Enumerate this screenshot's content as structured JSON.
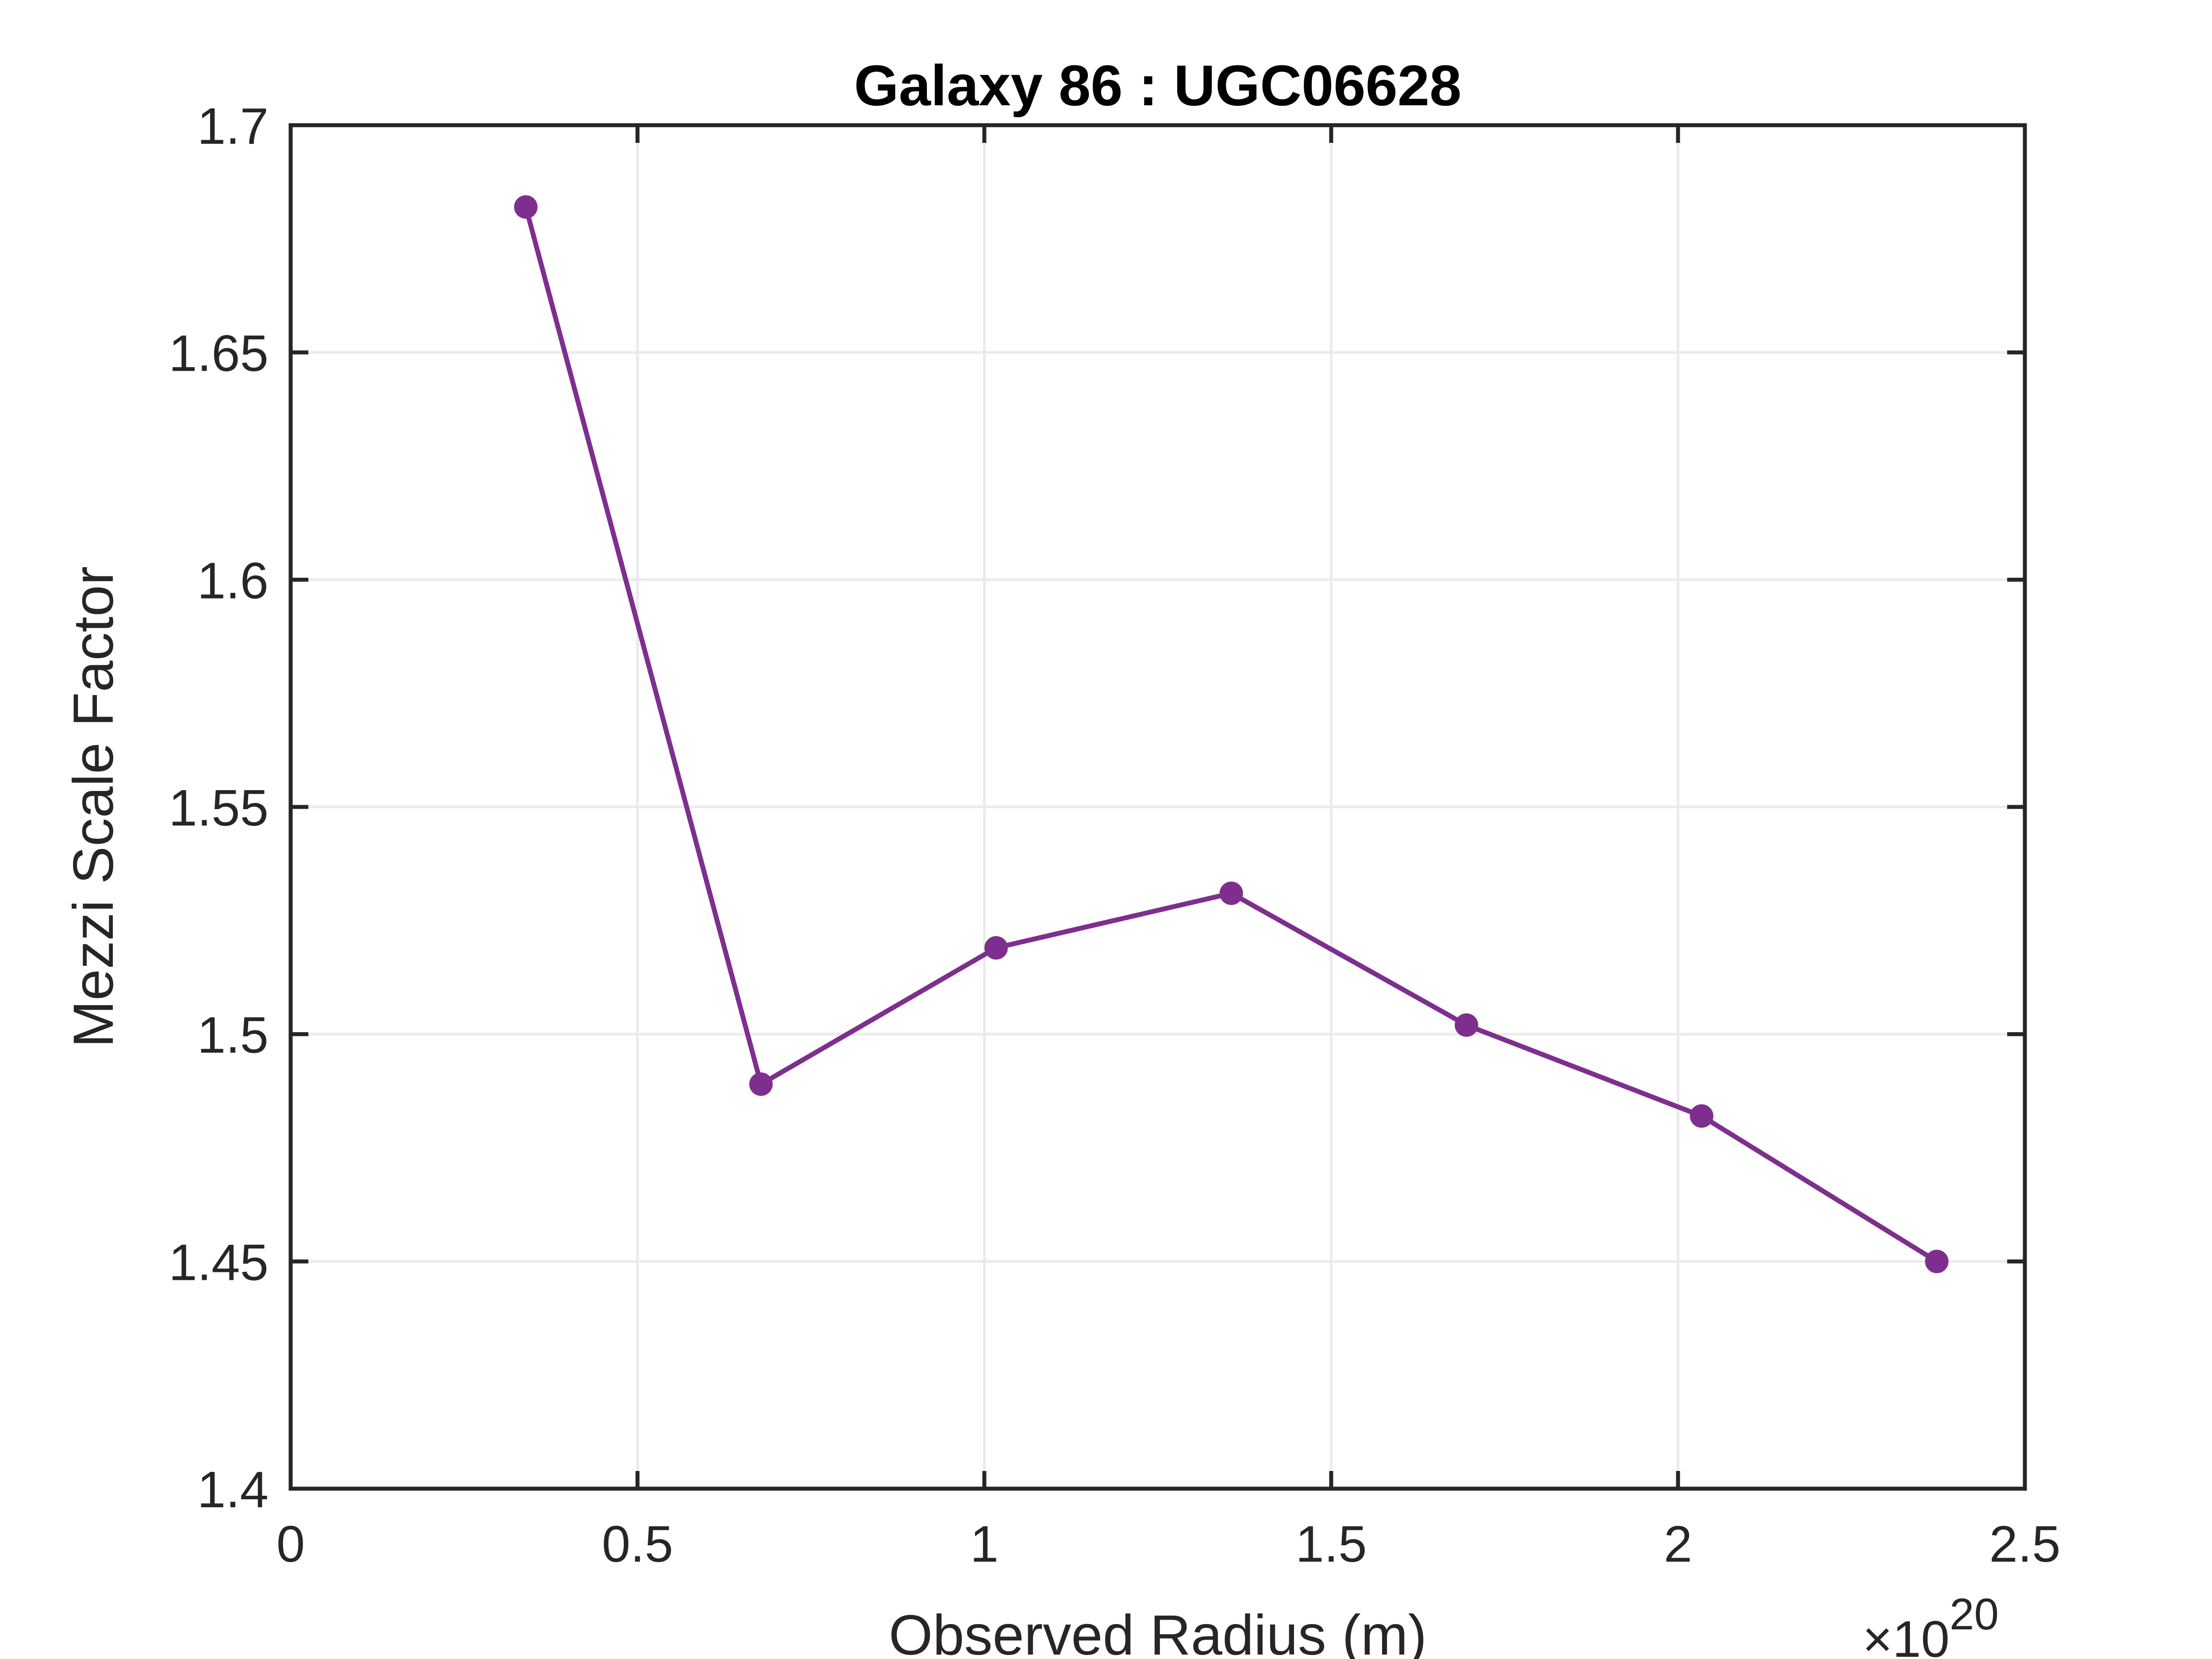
{
  "chart_data": {
    "type": "line",
    "title": "Galaxy 86 : UGC06628",
    "xlabel": "Observed Radius (m)",
    "ylabel": "Mezzi Scale Factor",
    "x_exponent_base": "×10",
    "x_exponent_power": "20",
    "xlim": [
      0,
      2.5
    ],
    "ylim": [
      1.4,
      1.7
    ],
    "x_ticks": [
      0,
      0.5,
      1,
      1.5,
      2,
      2.5
    ],
    "x_tick_labels": [
      "0",
      "0.5",
      "1",
      "1.5",
      "2",
      "2.5"
    ],
    "y_ticks": [
      1.4,
      1.45,
      1.5,
      1.55,
      1.6,
      1.65,
      1.7
    ],
    "y_tick_labels": [
      "1.4",
      "1.45",
      "1.5",
      "1.55",
      "1.6",
      "1.65",
      "1.7"
    ],
    "grid": true,
    "legend": "none",
    "series": [
      {
        "color": "#7E2F8E",
        "marker": "circle",
        "x": [
          0.339,
          0.678,
          1.017,
          1.356,
          1.695,
          2.034,
          2.373
        ],
        "y": [
          1.682,
          1.489,
          1.519,
          1.531,
          1.502,
          1.482,
          1.45
        ]
      }
    ]
  }
}
